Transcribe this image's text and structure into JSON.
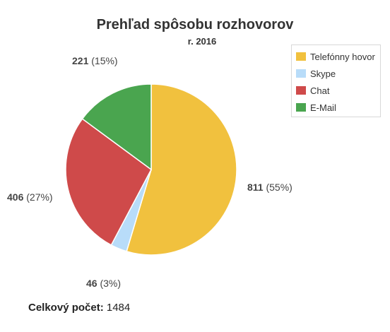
{
  "colors": {
    "telefonny_hovor": "#f1c13e",
    "skype": "#b8dcf9",
    "chat": "#cf4a4a",
    "e_mail": "#4aa54f"
  },
  "chart_data": {
    "type": "pie",
    "title": "Prehľad spôsobu rozhovorov",
    "subtitle": "r. 2016",
    "slices": [
      {
        "name": "Telefónny hovor",
        "value": 811,
        "percent": "55%",
        "color": "#f1c13e"
      },
      {
        "name": "Skype",
        "value": 46,
        "percent": "3%",
        "color": "#b8dcf9"
      },
      {
        "name": "Chat",
        "value": 406,
        "percent": "27%",
        "color": "#cf4a4a"
      },
      {
        "name": "E-Mail",
        "value": 221,
        "percent": "15%",
        "color": "#4aa54f"
      }
    ],
    "legend_position": "top-right",
    "total_label": "Celkový počet:",
    "total_value": "1484"
  }
}
